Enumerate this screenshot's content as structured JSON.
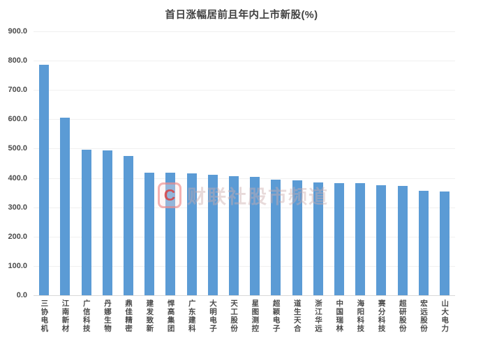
{
  "title": "首日涨幅居前且年内上市新股(%)",
  "watermark": {
    "logo_letter": "C",
    "text": "财联社股市频道"
  },
  "colors": {
    "bar": "#5B9BD5",
    "title_text": "#3f3f3f",
    "axis_text": "#4a4a4a",
    "gridline": "#f0f0f0",
    "axis_line": "#d8d8d8",
    "watermark_red": "#dc3a3a"
  },
  "chart_data": {
    "type": "bar",
    "title": "首日涨幅居前且年内上市新股(%)",
    "categories": [
      "三协电机",
      "江南新材",
      "广信科技",
      "丹娜生物",
      "鼎佳精密",
      "建发致新",
      "悍高集团",
      "广东建科",
      "大明电子",
      "天工股份",
      "星图测控",
      "超颖电子",
      "道生天合",
      "浙江华远",
      "中国瑞林",
      "海阳科技",
      "赛分科技",
      "超研股份",
      "宏远股份",
      "山大电力"
    ],
    "values": [
      785,
      605,
      497,
      495,
      476,
      418,
      417,
      416,
      410,
      407,
      404,
      394,
      391,
      384,
      383,
      382,
      375,
      374,
      356,
      353
    ],
    "xlabel": "",
    "ylabel": "",
    "ylim": [
      0,
      900
    ],
    "ytick_step": 100,
    "ytick_labels": [
      "900.0",
      "800.0",
      "700.0",
      "600.0",
      "500.0",
      "400.0",
      "300.0",
      "200.0",
      "100.0",
      "0.0"
    ],
    "grid": true,
    "legend": false,
    "bar_color": "#5B9BD5"
  }
}
